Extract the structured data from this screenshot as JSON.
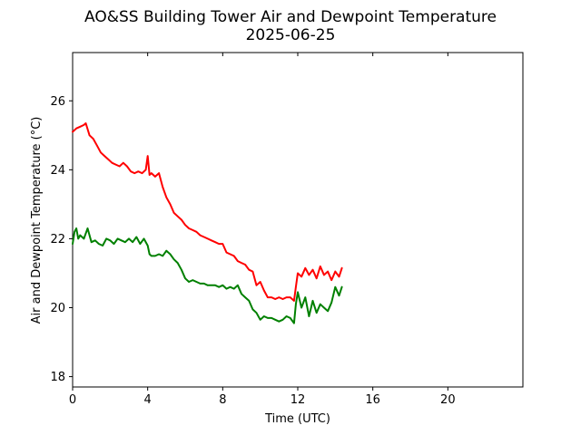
{
  "chart_data": {
    "type": "line",
    "title": "AO&SS Building Tower Air and Dewpoint Temperature",
    "subtitle": "2025-06-25",
    "xlabel": "Time (UTC)",
    "ylabel": "Air and Dewpoint Temperature (°C)",
    "xlim": [
      0,
      24
    ],
    "ylim": [
      17.7,
      27.4
    ],
    "xticks": [
      0,
      4,
      8,
      12,
      16,
      20
    ],
    "yticks": [
      18,
      20,
      22,
      24,
      26
    ],
    "grid": false,
    "legend": "none",
    "series": [
      {
        "color": "#ff0000",
        "x": [
          0.0,
          0.2,
          0.4,
          0.6,
          0.7,
          0.9,
          1.1,
          1.3,
          1.5,
          1.7,
          1.9,
          2.1,
          2.3,
          2.5,
          2.7,
          2.9,
          3.1,
          3.3,
          3.5,
          3.7,
          3.9,
          4.0,
          4.1,
          4.2,
          4.4,
          4.6,
          4.8,
          5.0,
          5.2,
          5.4,
          5.6,
          5.8,
          6.0,
          6.2,
          6.4,
          6.6,
          6.8,
          7.0,
          7.2,
          7.4,
          7.6,
          7.8,
          8.0,
          8.2,
          8.4,
          8.6,
          8.8,
          9.0,
          9.2,
          9.4,
          9.6,
          9.8,
          10.0,
          10.2,
          10.4,
          10.6,
          10.8,
          11.0,
          11.2,
          11.4,
          11.6,
          11.8,
          11.9,
          12.0,
          12.2,
          12.4,
          12.6,
          12.8,
          13.0,
          13.2,
          13.4,
          13.6,
          13.8,
          14.0,
          14.2,
          14.35
        ],
        "values": [
          25.1,
          25.2,
          25.25,
          25.3,
          25.35,
          25.0,
          24.9,
          24.7,
          24.5,
          24.4,
          24.3,
          24.2,
          24.15,
          24.1,
          24.2,
          24.1,
          23.95,
          23.9,
          23.95,
          23.9,
          24.0,
          24.4,
          23.85,
          23.9,
          23.8,
          23.9,
          23.5,
          23.2,
          23.0,
          22.75,
          22.65,
          22.55,
          22.4,
          22.3,
          22.25,
          22.2,
          22.1,
          22.05,
          22.0,
          21.95,
          21.9,
          21.85,
          21.85,
          21.6,
          21.55,
          21.5,
          21.35,
          21.3,
          21.25,
          21.1,
          21.05,
          20.65,
          20.75,
          20.5,
          20.3,
          20.3,
          20.25,
          20.3,
          20.25,
          20.3,
          20.3,
          20.2,
          20.6,
          21.0,
          20.9,
          21.15,
          20.95,
          21.1,
          20.85,
          21.2,
          20.95,
          21.05,
          20.8,
          21.05,
          20.9,
          21.15
        ]
      },
      {
        "color": "#008000",
        "x": [
          0.0,
          0.1,
          0.2,
          0.3,
          0.4,
          0.6,
          0.8,
          1.0,
          1.2,
          1.4,
          1.6,
          1.8,
          2.0,
          2.2,
          2.4,
          2.6,
          2.8,
          3.0,
          3.2,
          3.4,
          3.6,
          3.8,
          4.0,
          4.1,
          4.2,
          4.4,
          4.6,
          4.8,
          5.0,
          5.2,
          5.4,
          5.6,
          5.8,
          6.0,
          6.2,
          6.4,
          6.6,
          6.8,
          7.0,
          7.2,
          7.4,
          7.6,
          7.8,
          8.0,
          8.2,
          8.4,
          8.6,
          8.8,
          9.0,
          9.2,
          9.4,
          9.6,
          9.8,
          10.0,
          10.2,
          10.4,
          10.6,
          10.8,
          11.0,
          11.2,
          11.4,
          11.6,
          11.8,
          11.9,
          12.0,
          12.2,
          12.4,
          12.6,
          12.8,
          13.0,
          13.2,
          13.4,
          13.6,
          13.8,
          14.0,
          14.2,
          14.35
        ],
        "values": [
          21.85,
          22.2,
          22.3,
          22.0,
          22.1,
          22.0,
          22.3,
          21.9,
          21.95,
          21.85,
          21.8,
          22.0,
          21.95,
          21.85,
          22.0,
          21.95,
          21.9,
          22.0,
          21.9,
          22.05,
          21.85,
          22.0,
          21.8,
          21.55,
          21.5,
          21.5,
          21.55,
          21.5,
          21.65,
          21.55,
          21.4,
          21.3,
          21.1,
          20.85,
          20.75,
          20.8,
          20.75,
          20.7,
          20.7,
          20.65,
          20.65,
          20.65,
          20.6,
          20.65,
          20.55,
          20.6,
          20.55,
          20.65,
          20.4,
          20.3,
          20.2,
          19.95,
          19.85,
          19.65,
          19.75,
          19.7,
          19.7,
          19.65,
          19.6,
          19.65,
          19.75,
          19.7,
          19.55,
          20.1,
          20.45,
          20.0,
          20.3,
          19.75,
          20.2,
          19.85,
          20.1,
          20.0,
          19.9,
          20.15,
          20.6,
          20.35,
          20.6
        ]
      }
    ]
  }
}
